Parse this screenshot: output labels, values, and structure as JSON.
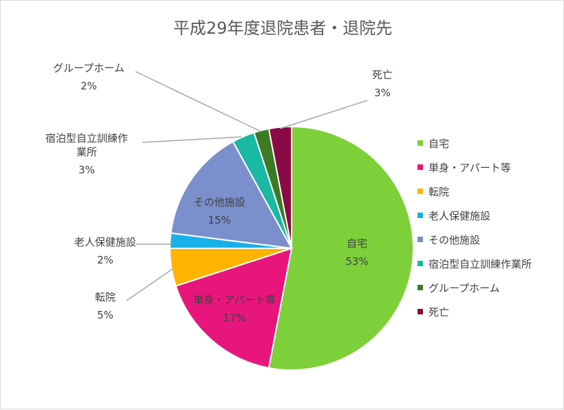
{
  "chart_data": {
    "type": "pie",
    "title": "平成29年度退院患者・退院先",
    "slices": [
      {
        "name": "自宅",
        "value": 53,
        "label": "53%",
        "color": "#7ed03a"
      },
      {
        "name": "単身・アパート等",
        "value": 17,
        "label": "17%",
        "color": "#e8157c"
      },
      {
        "name": "転院",
        "value": 5,
        "label": "5%",
        "color": "#ffb400"
      },
      {
        "name": "老人保健施設",
        "value": 2,
        "label": "2%",
        "color": "#18b0e8"
      },
      {
        "name": "その他施設",
        "value": 15,
        "label": "15%",
        "color": "#7a8fcc"
      },
      {
        "name": "宿泊型自立訓練作業所",
        "value": 3,
        "label": "3%",
        "color": "#1bb8a4",
        "label_lines": [
          "宿泊型自立訓練作",
          "業所"
        ]
      },
      {
        "name": "グループホーム",
        "value": 2,
        "label": "2%",
        "color": "#3d7a25"
      },
      {
        "name": "死亡",
        "value": 3,
        "label": "3%",
        "color": "#8a0a45"
      }
    ],
    "legend_position": "right"
  }
}
